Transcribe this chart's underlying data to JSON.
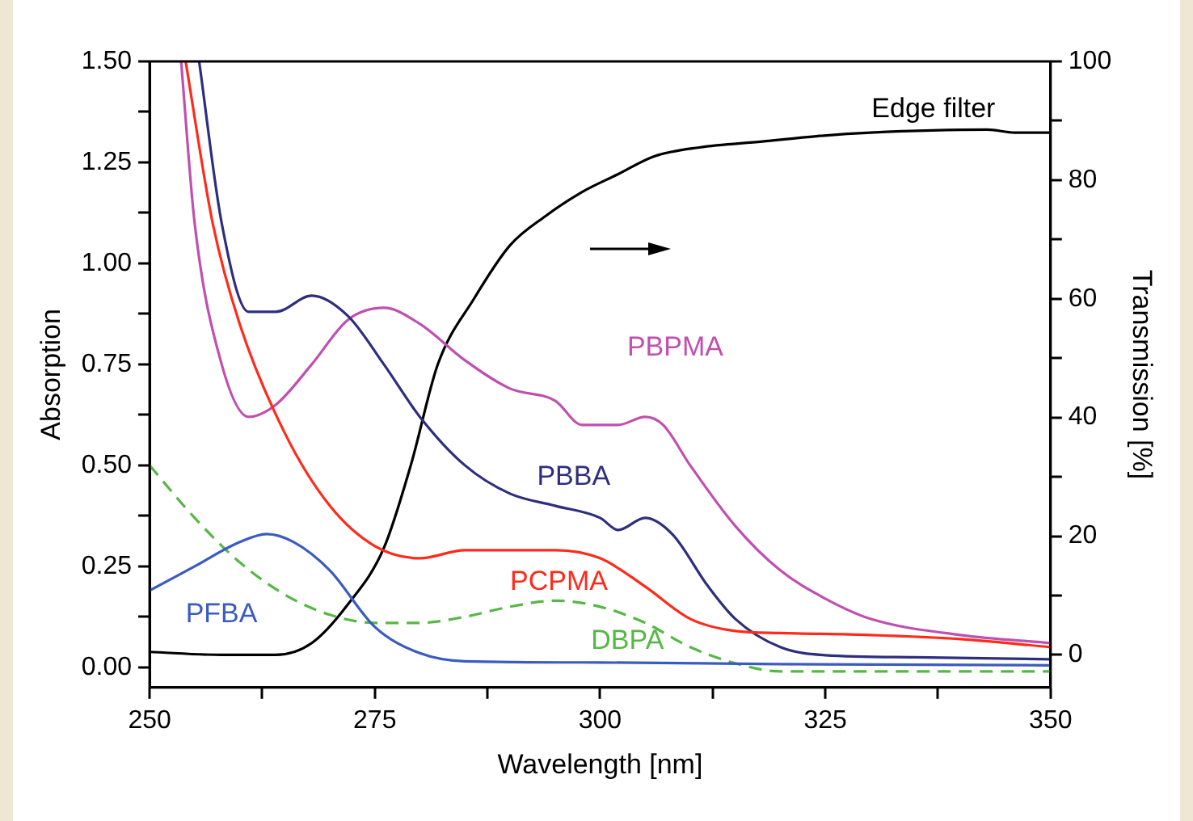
{
  "chart_data": {
    "type": "line",
    "xlabel": "Wavelength [nm]",
    "ylabel": "Absorption",
    "y2label": "Transmission [%]",
    "xlim": [
      250,
      350
    ],
    "xticks": [
      250,
      {
        "value": 262.5,
        "label": null
      },
      275,
      {
        "value": 287.5,
        "label": null
      },
      300,
      {
        "value": 312.5,
        "label": null
      },
      325,
      {
        "value": 337.5,
        "label": null
      },
      350
    ],
    "ylim": [
      -0.05,
      1.5
    ],
    "yticks": [
      "0.00",
      {
        "value": 0.125,
        "label": null
      },
      {
        "value": 0.25,
        "label": "0.25"
      },
      {
        "value": 0.375,
        "label": null
      },
      {
        "value": 0.5,
        "label": "0.50"
      },
      {
        "value": 0.625,
        "label": null
      },
      {
        "value": 0.75,
        "label": "0.75"
      },
      {
        "value": 0.875,
        "label": null
      },
      {
        "value": 1,
        "label": "1.00"
      },
      {
        "value": 1.125,
        "label": null
      },
      {
        "value": 1.25,
        "label": "1.25"
      },
      {
        "value": 1.375,
        "label": null
      },
      {
        "value": 1.5,
        "label": "1.50"
      }
    ],
    "y2lim": [
      -5.5,
      100
    ],
    "y2ticks": [
      0,
      {
        "value": 10,
        "label": null
      },
      20,
      {
        "value": 30,
        "label": null
      },
      40,
      {
        "value": 50,
        "label": null
      },
      60,
      {
        "value": 70,
        "label": null
      },
      80,
      {
        "value": 90,
        "label": null
      },
      100
    ],
    "grid": false,
    "legend": false,
    "marker": "none",
    "series": [
      {
        "name": "PFBA",
        "color": "#3a5bc0",
        "x": [
          250,
          255,
          260,
          263,
          266,
          270,
          275,
          280,
          285,
          300,
          320,
          350
        ],
        "values": [
          0.19,
          0.25,
          0.31,
          0.33,
          0.31,
          0.24,
          0.1,
          0.035,
          0.015,
          0.012,
          0.008,
          0.005
        ]
      },
      {
        "name": "DBPA",
        "color": "#55b845",
        "line_style": "dashed",
        "x": [
          250,
          255,
          260,
          265,
          270,
          275,
          280,
          285,
          290,
          295,
          300,
          305,
          310,
          315,
          320,
          335,
          350
        ],
        "values": [
          0.5,
          0.37,
          0.26,
          0.18,
          0.13,
          0.11,
          0.11,
          0.125,
          0.15,
          0.165,
          0.15,
          0.11,
          0.05,
          0.01,
          -0.01,
          -0.01,
          -0.01
        ]
      },
      {
        "name": "PCPMA",
        "color": "#ff2a1a",
        "x": [
          254,
          257,
          260,
          265,
          270,
          275,
          280,
          285,
          290,
          295,
          300,
          305,
          310,
          315,
          320,
          330,
          340,
          350
        ],
        "values": [
          1.5,
          1.1,
          0.85,
          0.58,
          0.4,
          0.3,
          0.27,
          0.29,
          0.29,
          0.29,
          0.27,
          0.2,
          0.12,
          0.09,
          0.085,
          0.08,
          0.07,
          0.05
        ]
      },
      {
        "name": "PBBA",
        "color": "#2e2e80",
        "x": [
          255.5,
          258,
          261,
          264,
          268,
          272,
          276,
          280,
          285,
          290,
          295,
          300,
          302,
          305,
          308,
          312,
          315,
          320,
          325,
          335,
          350
        ],
        "values": [
          1.5,
          1.1,
          0.88,
          0.88,
          0.92,
          0.87,
          0.75,
          0.62,
          0.5,
          0.43,
          0.4,
          0.37,
          0.34,
          0.37,
          0.33,
          0.2,
          0.12,
          0.05,
          0.03,
          0.025,
          0.02
        ]
      },
      {
        "name": "PBPMA",
        "color": "#c050b0",
        "x": [
          253.5,
          255,
          258,
          261,
          264,
          268,
          272,
          276,
          280,
          285,
          290,
          295,
          298,
          302,
          305,
          307,
          310,
          315,
          320,
          325,
          330,
          340,
          350
        ],
        "values": [
          1.5,
          1.1,
          0.75,
          0.62,
          0.65,
          0.75,
          0.86,
          0.89,
          0.85,
          0.76,
          0.69,
          0.66,
          0.6,
          0.6,
          0.62,
          0.6,
          0.5,
          0.35,
          0.24,
          0.17,
          0.12,
          0.08,
          0.06
        ]
      },
      {
        "name": "Edge filter",
        "color": "#000000",
        "axis": "y2",
        "x": [
          250,
          258,
          264,
          268,
          272,
          276,
          279,
          282,
          286,
          290,
          294,
          298,
          302,
          306,
          311,
          318,
          324,
          330,
          343,
          346,
          350
        ],
        "values": [
          0.5,
          0,
          0,
          2,
          8.5,
          18,
          32,
          49,
          60,
          69,
          74,
          78,
          81,
          84,
          85.5,
          86.5,
          87.4,
          88,
          88.5,
          88,
          88
        ]
      }
    ]
  }
}
